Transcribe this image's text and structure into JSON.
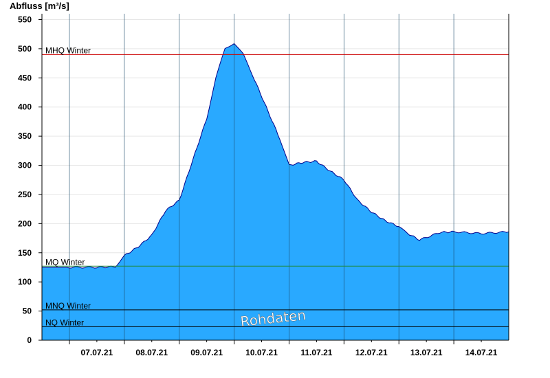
{
  "chart_data": {
    "type": "area",
    "ylabel": "Abfluss [m³/s]",
    "ylim": [
      0,
      560
    ],
    "yticks": [
      0,
      50,
      100,
      150,
      200,
      250,
      300,
      350,
      400,
      450,
      500,
      550
    ],
    "xlim_days": [
      "06.07.21 12:00",
      "14.07.21 24:00"
    ],
    "x_tick_labels": [
      "07.07.21",
      "08.07.21",
      "09.07.21",
      "10.07.21",
      "11.07.21",
      "12.07.21",
      "13.07.21",
      "14.07.21"
    ],
    "grid": true,
    "series": [
      {
        "fill": "#29a9ff",
        "line": "#00008b",
        "x": [
          "06.07.21 12:00",
          "07.07.21 00:00",
          "07.07.21 12:00",
          "07.07.21 20:00",
          "08.07.21 00:00",
          "08.07.21 06:00",
          "08.07.21 12:00",
          "08.07.21 18:00",
          "09.07.21 00:00",
          "09.07.21 06:00",
          "09.07.21 12:00",
          "09.07.21 16:00",
          "09.07.21 20:00",
          "10.07.21 00:00",
          "10.07.21 04:00",
          "10.07.21 08:00",
          "10.07.21 14:00",
          "10.07.21 20:00",
          "11.07.21 00:00",
          "11.07.21 06:00",
          "11.07.21 12:00",
          "11.07.21 18:00",
          "12.07.21 00:00",
          "12.07.21 06:00",
          "12.07.21 12:00",
          "12.07.21 18:00",
          "13.07.21 00:00",
          "13.07.21 03:00",
          "13.07.21 09:00",
          "13.07.21 18:00",
          "14.07.21 00:00",
          "14.07.21 12:00",
          "14.07.21 24:00"
        ],
        "y": [
          125,
          125,
          125,
          126,
          145,
          160,
          180,
          222,
          240,
          310,
          380,
          450,
          500,
          510,
          490,
          455,
          400,
          345,
          300,
          305,
          307,
          290,
          275,
          240,
          220,
          205,
          195,
          185,
          172,
          185,
          186,
          183,
          186
        ]
      }
    ],
    "reference_lines": [
      {
        "label": "MHQ Winter",
        "value": 490,
        "color": "#cc0000"
      },
      {
        "label": "MQ Winter",
        "value": 127,
        "color": "#1e8a3c"
      },
      {
        "label": "MNQ Winter",
        "value": 52,
        "color": "#000000"
      },
      {
        "label": "NQ Winter",
        "value": 23,
        "color": "#000000"
      }
    ],
    "watermark": "Rohdaten"
  }
}
